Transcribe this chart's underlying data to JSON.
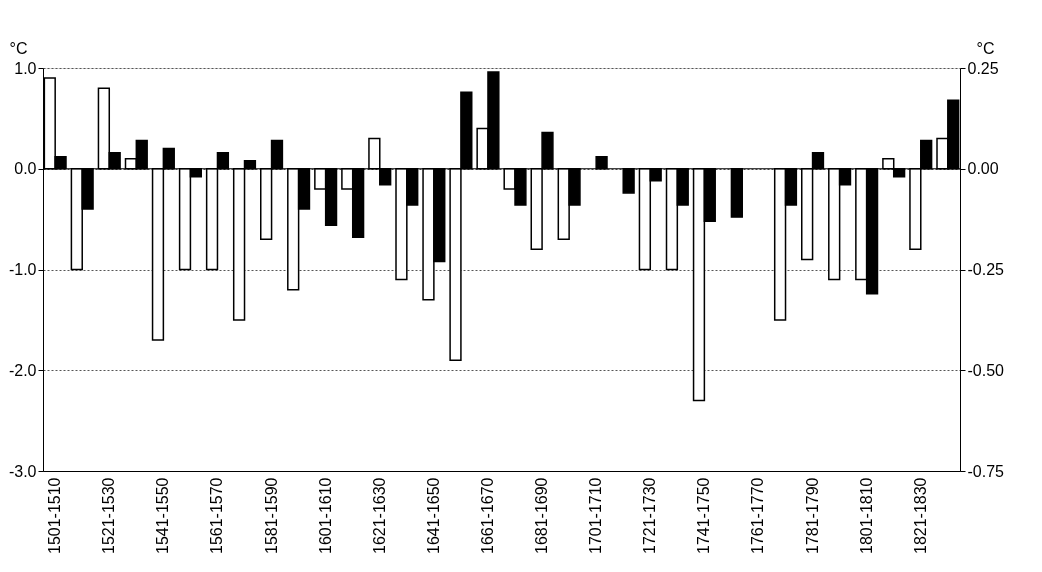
{
  "chart_data": {
    "type": "bar",
    "categories": [
      "1501-1510",
      null,
      "1521-1530",
      null,
      "1541-1550",
      null,
      "1561-1570",
      null,
      "1581-1590",
      null,
      "1601-1610",
      null,
      "1621-1630",
      null,
      "1641-1650",
      null,
      "1661-1670",
      null,
      "1681-1690",
      null,
      "1701-1710",
      null,
      "1721-1730",
      null,
      "1741-1750",
      null,
      "1761-1770",
      null,
      "1781-1790",
      null,
      "1801-1810",
      null,
      "1821-1830",
      null
    ],
    "series": [
      {
        "color": "#ffffff",
        "values": [
          0.9,
          -1.0,
          0.8,
          0.1,
          -1.7,
          -1.0,
          -1.0,
          -1.5,
          -0.7,
          -1.2,
          -0.2,
          -0.2,
          0.3,
          -1.1,
          -1.3,
          -1.9,
          0.4,
          -0.2,
          -0.8,
          -0.7,
          null,
          null,
          -1.0,
          -1.0,
          -2.3,
          null,
          null,
          -1.5,
          -0.9,
          -1.1,
          -1.1,
          0.1,
          -0.8,
          0.3
        ]
      },
      {
        "color": "#000000",
        "axis": "y2",
        "values": [
          0.03,
          -0.1,
          0.04,
          0.07,
          0.05,
          -0.02,
          0.04,
          0.02,
          0.07,
          -0.1,
          -0.14,
          -0.17,
          -0.04,
          -0.09,
          -0.23,
          0.19,
          0.24,
          -0.09,
          0.09,
          -0.09,
          0.03,
          -0.06,
          -0.03,
          -0.09,
          -0.13,
          -0.12,
          null,
          -0.09,
          0.04,
          -0.04,
          -0.31,
          -0.02,
          0.07,
          0.17
        ]
      }
    ],
    "ylabel": "°C",
    "y2label": "°C",
    "ylim": [
      -3,
      1
    ],
    "yticks": [
      {
        "value": -3,
        "label": "-3.0"
      },
      {
        "value": -2,
        "label": "-2.0"
      },
      {
        "value": -1,
        "label": "-1.0"
      },
      {
        "value": 0,
        "label": "0.0"
      },
      {
        "value": 1,
        "label": "1.0"
      }
    ],
    "y2lim": [
      -0.75,
      0.25
    ],
    "y2ticks": [
      -0.75,
      {
        "value": -0.5,
        "label": "-0.50"
      },
      -0.25,
      {
        "value": 0,
        "label": "0.00"
      },
      0.25
    ],
    "grid": "y"
  }
}
